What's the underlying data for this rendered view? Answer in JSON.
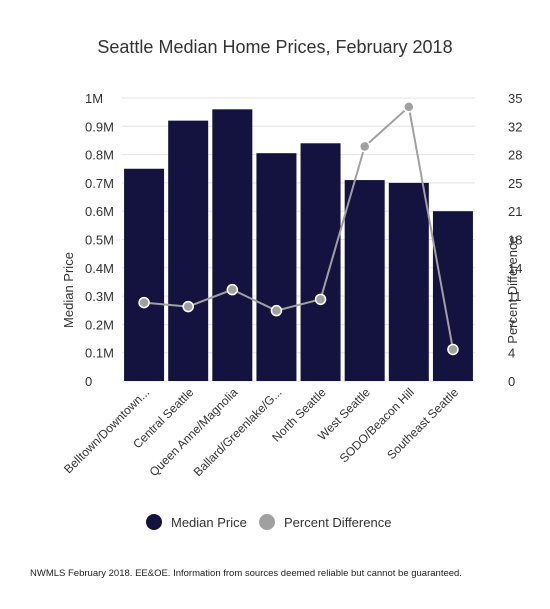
{
  "chart_data": {
    "type": "bar",
    "title": "Seattle Median Home Prices, February 2018",
    "categories": [
      "Belltown/Downtown...",
      "Central Seattle",
      "Queen Anne/Magnolia",
      "Ballard/Greenlake/G...",
      "North Seattle",
      "West Seattle",
      "SODO/Beacon Hill",
      "Southeast Seattle"
    ],
    "series": [
      {
        "name": "Median Price",
        "type": "bar",
        "axis": "left",
        "color": "#14133f",
        "values": [
          750000,
          920000,
          960000,
          805000,
          840000,
          710000,
          700000,
          600000
        ]
      },
      {
        "name": "Percent Difference",
        "type": "line",
        "axis": "right",
        "color": "#a0a0a0",
        "values": [
          9.7,
          9.2,
          11.3,
          8.7,
          10.1,
          29.0,
          33.9,
          3.9
        ]
      }
    ],
    "ylabel": "Median Price",
    "y2label": "Percent Difference",
    "ylim": [
      0,
      1000000
    ],
    "y2lim": [
      0,
      35
    ],
    "yticks": [
      "0",
      "0.1M",
      "0.2M",
      "0.3M",
      "0.4M",
      "0.5M",
      "0.6M",
      "0.7M",
      "0.8M",
      "0.9M",
      "1M"
    ],
    "y2ticks": [
      "0",
      "4",
      "7",
      "11",
      "14",
      "18",
      "21",
      "25",
      "28",
      "32",
      "35"
    ],
    "grid": true,
    "legend": "bottom"
  },
  "footnote": "NWMLS February 2018. EE&OE. Information from sources deemed reliable but cannot be guaranteed."
}
